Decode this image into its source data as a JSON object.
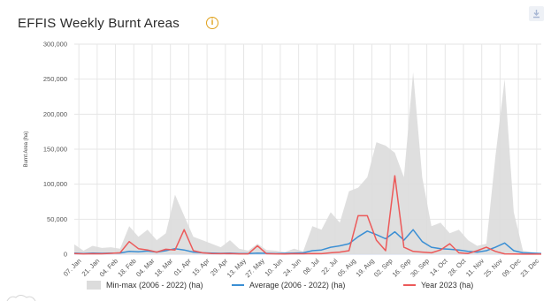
{
  "header": {
    "title": "EFFIS Weekly Burnt Areas"
  },
  "icons": {
    "info": "info-icon",
    "download": "download-icon"
  },
  "colors": {
    "minmax": "#dcdcdc",
    "average": "#3b8fd4",
    "year2023": "#ec5a5a",
    "grid": "#e6e6e6"
  },
  "legend": {
    "minmax": "Min-max (2006 - 2022) (ha)",
    "average": "Average (2006 - 2022) (ha)",
    "year2023": "Year 2023 (ha)"
  },
  "chart_data": {
    "type": "area",
    "title": "EFFIS Weekly Burnt Areas",
    "ylabel": "Burnt Area (ha)",
    "xlabel": "",
    "ylim": [
      0,
      300000
    ],
    "yticks": [
      "0",
      "50,000",
      "100,000",
      "150,000",
      "200,000",
      "250,000",
      "300,000"
    ],
    "grid": true,
    "legend_position": "bottom",
    "x_tick_labels": [
      "07. Jan",
      "21. Jan",
      "04. Feb",
      "18. Feb",
      "04. Mar",
      "18. Mar",
      "01. Apr",
      "15. Apr",
      "29. Apr",
      "13. May",
      "27. May",
      "10. Jun",
      "24. Jun",
      "08. Jul",
      "22. Jul",
      "05. Aug",
      "19. Aug",
      "02. Sep",
      "16. Sep",
      "30. Sep",
      "14. Oct",
      "28. Oct",
      "11. Nov",
      "25. Nov",
      "09. Dec",
      "23. Dec"
    ],
    "series": [
      {
        "name": "Min-max (2006 - 2022) (ha)",
        "kind": "range",
        "values": [
          14000,
          5000,
          12000,
          9000,
          10000,
          8000,
          40000,
          25000,
          35000,
          20000,
          30000,
          85000,
          55000,
          25000,
          20000,
          15000,
          10000,
          20000,
          8000,
          5000,
          15000,
          6000,
          5000,
          3000,
          8000,
          4000,
          40000,
          35000,
          60000,
          45000,
          90000,
          95000,
          110000,
          160000,
          155000,
          145000,
          110000,
          260000,
          110000,
          40000,
          45000,
          30000,
          35000,
          20000,
          12000,
          15000,
          140000,
          250000,
          60000,
          5000,
          3000,
          2000
        ]
      },
      {
        "name": "Average (2006 - 2022) (ha)",
        "values": [
          1500,
          1000,
          1500,
          1200,
          1500,
          1800,
          4000,
          3500,
          4500,
          3000,
          5000,
          8000,
          6000,
          3000,
          2000,
          1500,
          1200,
          1500,
          1000,
          1000,
          1500,
          1200,
          1000,
          1200,
          1500,
          2000,
          5000,
          6000,
          10000,
          12000,
          15000,
          25000,
          33000,
          28000,
          22000,
          32000,
          20000,
          35000,
          18000,
          10000,
          8000,
          7000,
          6000,
          4000,
          3000,
          5000,
          10000,
          16000,
          5000,
          2000,
          1500,
          1000
        ]
      },
      {
        "name": "Year 2023 (ha)",
        "values": [
          1000,
          500,
          800,
          600,
          1200,
          2000,
          18000,
          8000,
          6000,
          3000,
          7000,
          6000,
          35000,
          5000,
          2000,
          1000,
          800,
          1000,
          500,
          500,
          12000,
          800,
          500,
          400,
          800,
          600,
          1000,
          800,
          2000,
          3000,
          5000,
          55000,
          55000,
          20000,
          5000,
          112000,
          10000,
          4000,
          3000,
          2000,
          6000,
          15000,
          2000,
          1000,
          5000,
          10000,
          4000,
          500,
          200,
          100,
          100,
          100
        ]
      }
    ]
  }
}
